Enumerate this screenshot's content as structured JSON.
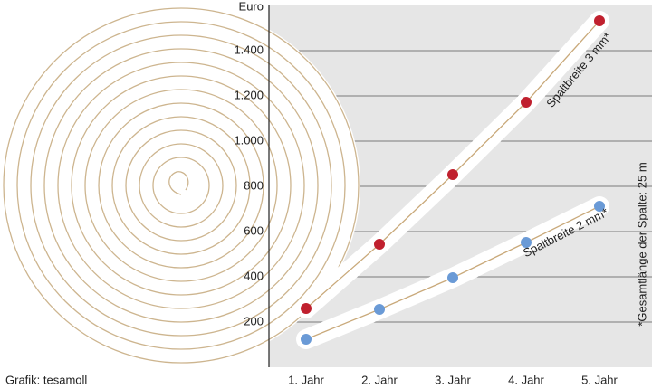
{
  "chart_data": {
    "type": "line",
    "y_axis_label": "Euro",
    "credit": "Grafik: tesamoll",
    "footnote": "*Gesamtlänge der Spalte: 25 m",
    "categories": [
      "1. Jahr",
      "2. Jahr",
      "3. Jahr",
      "4. Jahr",
      "5. Jahr"
    ],
    "series": [
      {
        "name": "Spaltbreite 3 mm*",
        "color": "#c0202e",
        "values": [
          260,
          544,
          852,
          1172,
          1532
        ]
      },
      {
        "name": "Spaltbreite 2 mm*",
        "color": "#6a9ad6",
        "values": [
          124,
          256,
          396,
          552,
          712
        ]
      }
    ],
    "ylim": [
      0,
      1600
    ],
    "yticks": [
      200,
      400,
      600,
      800,
      {
        "value": 1000,
        "label": "1.000"
      },
      {
        "value": 1200,
        "label": "1.200"
      },
      {
        "value": 1400,
        "label": "1.400"
      }
    ],
    "grid": true
  }
}
